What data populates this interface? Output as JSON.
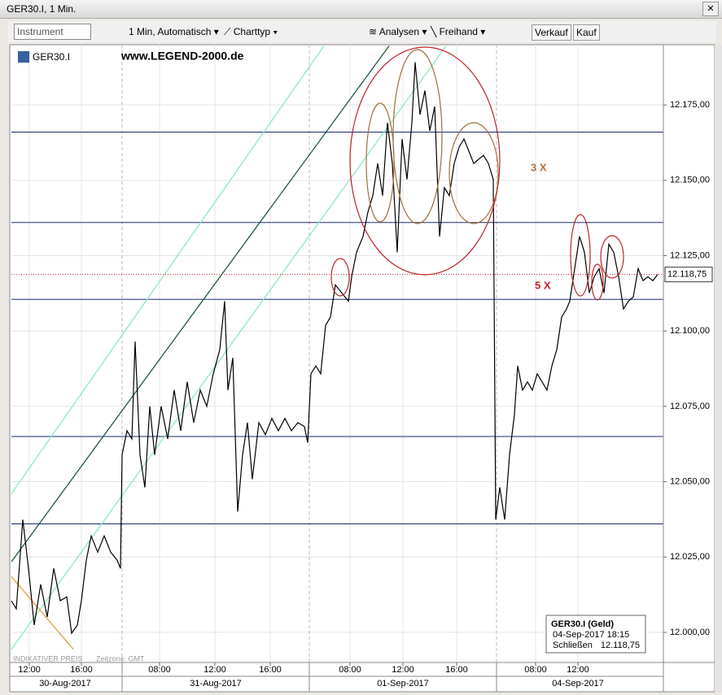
{
  "window": {
    "title": "GER30.I, 1 Min."
  },
  "toolbar": {
    "instrument": "Instrument",
    "interval": "1 Min, Automatisch",
    "chart_type": "Charttyp",
    "analyses": "Analysen",
    "freehand": "Freihand",
    "sell": "Verkauf",
    "buy": "Kauf"
  },
  "chart_data": {
    "type": "line",
    "symbol": "GER30.I",
    "watermark": "www.LEGEND-2000.de",
    "annotations": [
      "3 X",
      "5 X"
    ],
    "footer": [
      "INDIKATIVER PREIS",
      "Zeitzone: GMT"
    ],
    "color": "#000000",
    "grid": true,
    "last_price": {
      "value": 12118.75,
      "label": "12.118,75"
    },
    "x": [
      0,
      6,
      14,
      21,
      28,
      36,
      44,
      52,
      60,
      68,
      74,
      81,
      86,
      92,
      98,
      106,
      114,
      122,
      130,
      134,
      136,
      142,
      148,
      152,
      158,
      164,
      170,
      176,
      184,
      192,
      200,
      208,
      216,
      224,
      232,
      240,
      248,
      256,
      262,
      266,
      272,
      278,
      284,
      290,
      296,
      304,
      312,
      320,
      328,
      336,
      344,
      352,
      360,
      364,
      368,
      374,
      380,
      386,
      392,
      398,
      406,
      414,
      418,
      424,
      432,
      438,
      444,
      450,
      456,
      462,
      468,
      474,
      480,
      486,
      492,
      496,
      502,
      508,
      514,
      520,
      526,
      532,
      538,
      544,
      550,
      556,
      562,
      568,
      574,
      580,
      586,
      592,
      595,
      600,
      606,
      612,
      618,
      622,
      628,
      634,
      640,
      646,
      652,
      658,
      664,
      670,
      676,
      682,
      686,
      692,
      698,
      704,
      710,
      716,
      722,
      728,
      734,
      740,
      746,
      752,
      758,
      764,
      770,
      776,
      782,
      788,
      794
    ],
    "values": [
      12010.5,
      12007.8,
      12037.4,
      12021.2,
      12002.4,
      12015.9,
      12005.1,
      12021.2,
      12010.5,
      12011.8,
      11999.7,
      12002.4,
      12010.5,
      12023.9,
      12032.0,
      12026.6,
      12032.0,
      12026.6,
      12023.9,
      12021.2,
      12058.9,
      12066.9,
      12064.2,
      12096.5,
      12058.9,
      12048.1,
      12075.0,
      12058.9,
      12075.0,
      12064.2,
      12080.4,
      12066.9,
      12083.1,
      12069.6,
      12080.4,
      12075.0,
      12085.8,
      12093.8,
      12109.9,
      12080.4,
      12091.1,
      12040.1,
      12058.9,
      12069.6,
      12050.8,
      12069.6,
      12065.6,
      12071.0,
      12066.9,
      12071.0,
      12066.9,
      12069.6,
      12068.3,
      12062.9,
      12085.8,
      12088.4,
      12085.8,
      12101.9,
      12104.6,
      12115.3,
      12112.6,
      12109.9,
      12118.0,
      12126.1,
      12131.4,
      12139.5,
      12144.9,
      12155.6,
      12144.9,
      12169.1,
      12155.6,
      12126.1,
      12163.7,
      12150.3,
      12169.1,
      12189.2,
      12171.8,
      12179.8,
      12166.4,
      12174.5,
      12131.4,
      12147.6,
      12144.9,
      12155.6,
      12161.0,
      12163.7,
      12159.7,
      12155.6,
      12157.0,
      12158.3,
      12155.6,
      12150.3,
      12037.4,
      12048.1,
      12037.4,
      12058.9,
      12072.3,
      12088.4,
      12080.4,
      12083.1,
      12080.4,
      12085.8,
      12083.1,
      12080.4,
      12088.4,
      12093.8,
      12104.6,
      12107.3,
      12109.9,
      12120.7,
      12131.4,
      12126.1,
      12112.6,
      12118.0,
      12120.7,
      12112.6,
      12128.8,
      12126.1,
      12118.0,
      12107.3,
      12109.9,
      12111.3,
      12120.7,
      12116.7,
      12118.0,
      12116.7,
      12118.75
    ],
    "xlim": [
      0,
      801
    ],
    "ylim": [
      11990,
      12195
    ],
    "xticks": [
      {
        "value": 22,
        "label": "12:00"
      },
      {
        "value": 86,
        "label": "16:00"
      },
      {
        "value": 182,
        "label": "08:00"
      },
      {
        "value": 250,
        "label": "12:00"
      },
      {
        "value": 318,
        "label": "16:00"
      },
      {
        "value": 416,
        "label": "08:00"
      },
      {
        "value": 481,
        "label": "12:00"
      },
      {
        "value": 547,
        "label": "16:00"
      },
      {
        "value": 644,
        "label": "08:00"
      },
      {
        "value": 696,
        "label": "12:00"
      }
    ],
    "date_labels": [
      {
        "value": 66,
        "label": "30-Aug-2017"
      },
      {
        "value": 251,
        "label": "31-Aug-2017"
      },
      {
        "value": 481,
        "label": "01-Sep-2017"
      },
      {
        "value": 696,
        "label": "04-Sep-2017"
      }
    ],
    "day_breaks": [
      136,
      366,
      596
    ],
    "yticks": [
      {
        "value": 12000,
        "label": "12.000,00"
      },
      {
        "value": 12025,
        "label": "12.025,00"
      },
      {
        "value": 12050,
        "label": "12.050,00"
      },
      {
        "value": 12075,
        "label": "12.075,00"
      },
      {
        "value": 12100,
        "label": "12.100,00"
      },
      {
        "value": 12125,
        "label": "12.125,00"
      },
      {
        "value": 12150,
        "label": "12.150,00"
      },
      {
        "value": 12175,
        "label": "12.175,00"
      }
    ],
    "levels": [
      12166,
      12136,
      12110.5,
      12065,
      12036
    ],
    "level_color": "#1c2a6b",
    "trendlines": [
      {
        "color": "#1f5a3a",
        "x": [
          0,
          464
        ],
        "y": [
          12023.4,
          12194.6
        ]
      },
      {
        "color": "#8fe8c0",
        "x": [
          0,
          384
        ],
        "y": [
          12046,
          12194.6
        ]
      },
      {
        "color": "#8fe8c0",
        "x": [
          0,
          534
        ],
        "y": [
          11994.4,
          12194.6
        ]
      },
      {
        "color": "#e0a040",
        "x": [
          0,
          76
        ],
        "y": [
          12018.5,
          11994.4
        ]
      }
    ]
  },
  "info_box": {
    "title": "GER30.I (Geld)",
    "datetime": "04-Sep-2017 18:15",
    "field": "Schließen",
    "value": "12.118,75"
  }
}
